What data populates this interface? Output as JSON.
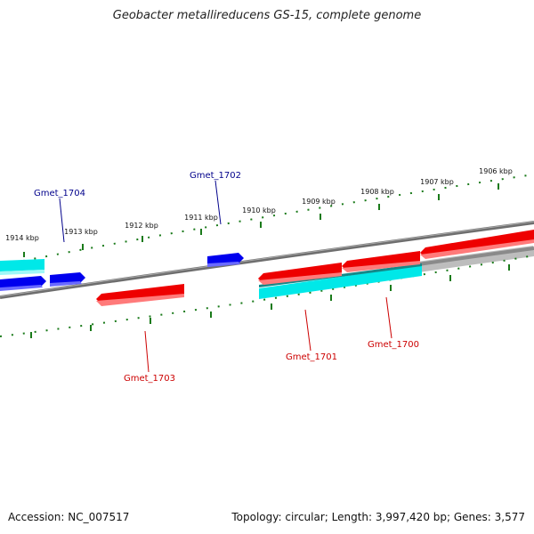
{
  "title": "Geobacter metallireducens GS-15, complete genome",
  "footer": {
    "accession": "Accession: NC_007517",
    "summary": "Topology: circular; Length: 3,997,420 bp; Genes: 3,577"
  },
  "colors": {
    "forward_gene": "#ee0000",
    "reverse_gene": "#0000ee",
    "cds_feature": "#00e8e8",
    "tick": "#1a7a1a",
    "backbone": "#777777",
    "backbone_light": "#c0c0c0"
  },
  "kbp_ticks": [
    "1906 kbp",
    "1907 kbp",
    "1908 kbp",
    "1909 kbp",
    "1910 kbp",
    "1911 kbp",
    "1912 kbp",
    "1913 kbp",
    "1914 kbp"
  ],
  "genes": [
    {
      "name": "Gmet_1700",
      "strand": "forward"
    },
    {
      "name": "Gmet_1701",
      "strand": "forward"
    },
    {
      "name": "Gmet_1702",
      "strand": "reverse"
    },
    {
      "name": "Gmet_1703",
      "strand": "forward"
    },
    {
      "name": "Gmet_1704",
      "strand": "reverse"
    }
  ]
}
